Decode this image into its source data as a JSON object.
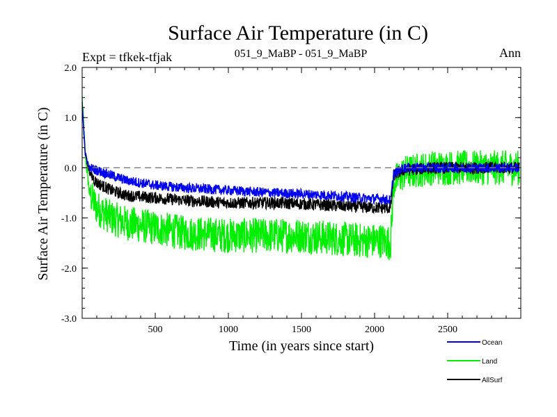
{
  "chart_data": {
    "type": "line",
    "title": "Surface Air Temperature (in C)",
    "subtitle_left": "Expt = tfkek-tfjak",
    "subtitle_center": "051_9_MaBP - 051_9_MaBP",
    "subtitle_right": "Ann",
    "xlabel": "Time (in years since start)",
    "ylabel": "Surface Air Temperature (in C)",
    "xlim": [
      0,
      3000
    ],
    "ylim": [
      -3.0,
      2.0
    ],
    "xticks": [
      500,
      1000,
      1500,
      2000,
      2500
    ],
    "xtick_labels": [
      "500",
      "1000",
      "1500",
      "2000",
      "2500"
    ],
    "yticks": [
      -3.0,
      -2.0,
      -1.0,
      0.0,
      1.0,
      2.0
    ],
    "ytick_labels": [
      "-3.0",
      "-2.0",
      "-1.0",
      "0.0",
      "1.0",
      "2.0"
    ],
    "reference_line": {
      "y": 0.0,
      "style": "dashed",
      "color": "#808080"
    },
    "legend_placement": "below-right",
    "series": [
      {
        "name": "Land",
        "color": "#00ee00",
        "x": [
          0,
          20,
          50,
          100,
          200,
          300,
          500,
          700,
          1000,
          1300,
          1500,
          1700,
          1900,
          2050,
          2110,
          2130,
          2200,
          2400,
          2600,
          2800,
          2990
        ],
        "y": [
          1.4,
          0.3,
          -0.5,
          -0.8,
          -1.0,
          -1.1,
          -1.2,
          -1.3,
          -1.35,
          -1.35,
          -1.35,
          -1.4,
          -1.45,
          -1.45,
          -1.5,
          -0.3,
          -0.1,
          0.0,
          0.0,
          0.0,
          0.0
        ],
        "noise": 0.35
      },
      {
        "name": "AllSurf",
        "color": "#000000",
        "x": [
          0,
          20,
          50,
          100,
          200,
          300,
          500,
          700,
          1000,
          1300,
          1500,
          1700,
          1900,
          2050,
          2110,
          2130,
          2200,
          2400,
          2600,
          2800,
          2990
        ],
        "y": [
          1.3,
          0.3,
          -0.1,
          -0.3,
          -0.45,
          -0.55,
          -0.6,
          -0.65,
          -0.7,
          -0.7,
          -0.72,
          -0.75,
          -0.78,
          -0.8,
          -0.8,
          -0.15,
          -0.05,
          0.0,
          0.0,
          0.0,
          0.0
        ],
        "noise": 0.12
      },
      {
        "name": "Ocean",
        "color": "#0000ee",
        "x": [
          0,
          20,
          50,
          100,
          200,
          300,
          500,
          700,
          1000,
          1300,
          1500,
          1700,
          1900,
          2050,
          2110,
          2130,
          2200,
          2400,
          2600,
          2800,
          2990
        ],
        "y": [
          1.3,
          0.3,
          0.0,
          -0.05,
          -0.15,
          -0.25,
          -0.35,
          -0.4,
          -0.45,
          -0.5,
          -0.52,
          -0.55,
          -0.6,
          -0.62,
          -0.65,
          -0.12,
          0.0,
          0.0,
          0.0,
          0.0,
          0.0
        ],
        "noise": 0.1
      }
    ],
    "legend": [
      {
        "name": "Ocean",
        "color": "#0000ee"
      },
      {
        "name": "Land",
        "color": "#00ee00"
      },
      {
        "name": "AllSurf",
        "color": "#000000"
      }
    ]
  }
}
